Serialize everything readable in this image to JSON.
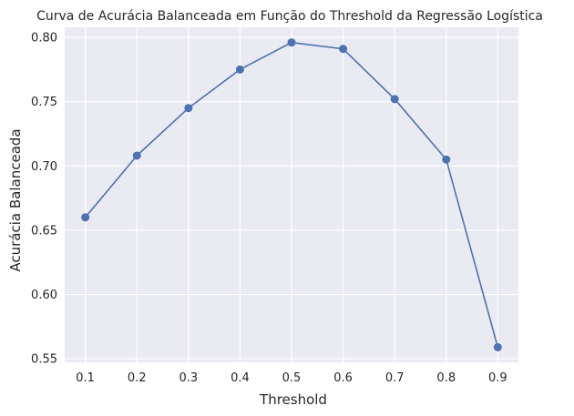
{
  "chart_data": {
    "type": "line",
    "title": "Curva de Acurácia Balanceada em Função do Threshold da Regressão Logística",
    "xlabel": "Threshold",
    "ylabel": "Acurácia Balanceada",
    "x": [
      0.1,
      0.2,
      0.3,
      0.4,
      0.5,
      0.6,
      0.7,
      0.8,
      0.9
    ],
    "series": [
      {
        "values": [
          0.66,
          0.708,
          0.745,
          0.775,
          0.796,
          0.791,
          0.752,
          0.705,
          0.559
        ],
        "color": "#4c72b0",
        "marker": "circle"
      }
    ],
    "xticks": [
      "0.1",
      "0.2",
      "0.3",
      "0.4",
      "0.5",
      "0.6",
      "0.7",
      "0.8",
      "0.9"
    ],
    "yticks": [
      "0.55",
      "0.60",
      "0.65",
      "0.70",
      "0.75",
      "0.80"
    ],
    "xlim": [
      0.06,
      0.94
    ],
    "ylim": [
      0.5473,
      0.8078
    ],
    "grid": true,
    "background": "#eaeaf2",
    "grid_color": "#ffffff"
  }
}
